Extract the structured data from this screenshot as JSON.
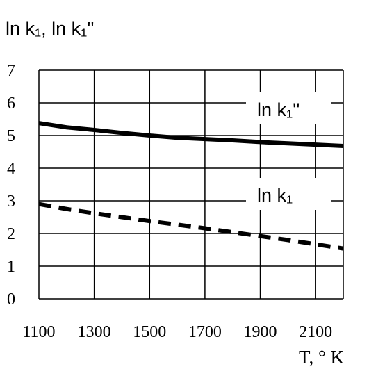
{
  "chart_data": {
    "type": "line",
    "ylabel": "ln k₁, ln k₁''",
    "xlabel": "T, ° K",
    "xlim": [
      1100,
      2200
    ],
    "ylim": [
      0,
      7
    ],
    "x_ticks": [
      "1100",
      "1300",
      "1500",
      "1700",
      "1900",
      "2100"
    ],
    "y_ticks": [
      "0",
      "1",
      "2",
      "3",
      "4",
      "5",
      "6",
      "7"
    ],
    "grid": true,
    "series": [
      {
        "name": "ln k₁''",
        "style": "solid",
        "color": "#000000",
        "x": [
          1100,
          1200,
          1300,
          1400,
          1500,
          1600,
          1700,
          1800,
          1900,
          2000,
          2100,
          2200
        ],
        "y": [
          5.38,
          5.25,
          5.17,
          5.08,
          5.0,
          4.93,
          4.89,
          4.85,
          4.8,
          4.76,
          4.72,
          4.68
        ]
      },
      {
        "name": "ln k₁",
        "style": "dashed",
        "color": "#000000",
        "x": [
          1100,
          1200,
          1300,
          1400,
          1500,
          1600,
          1700,
          1800,
          1900,
          2000,
          2100,
          2200
        ],
        "y": [
          2.9,
          2.75,
          2.62,
          2.5,
          2.38,
          2.27,
          2.16,
          2.04,
          1.92,
          1.8,
          1.67,
          1.54
        ]
      }
    ]
  }
}
